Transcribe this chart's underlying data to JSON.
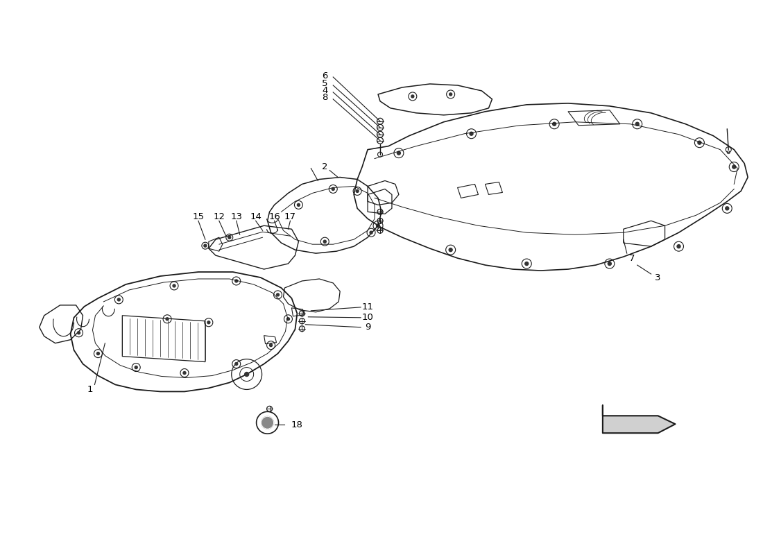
{
  "bg_color": "#ffffff",
  "line_color": "#1a1a1a",
  "figsize": [
    11.0,
    8.0
  ],
  "dpi": 100,
  "label_fontsize": 9,
  "label_fontsize_bold": 9
}
